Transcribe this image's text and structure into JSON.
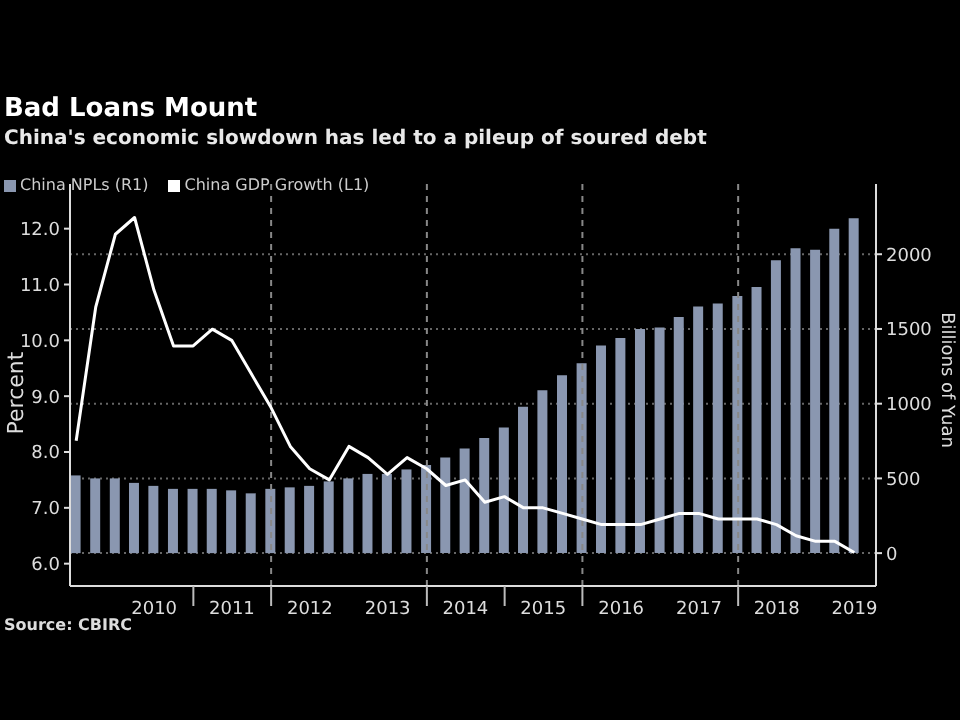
{
  "chart_data": {
    "type": "bar",
    "title": "Bad Loans Mount",
    "subtitle": "China's economic slowdown has led to a pileup of soured debt",
    "ylabel": "Percent",
    "y2label": "Billions of Yuan",
    "annotations": [
      "Source: CBIRC"
    ],
    "x": [
      "2009-06-30",
      "2009-09-30",
      "2009-12-31",
      "2010-03-31",
      "2010-06-30",
      "2010-09-30",
      "2010-12-31",
      "2011-03-31",
      "2011-06-30",
      "2011-09-30",
      "2011-12-31",
      "2012-03-31",
      "2012-06-30",
      "2012-09-30",
      "2012-12-31",
      "2013-03-31",
      "2013-06-30",
      "2013-09-30",
      "2013-12-31",
      "2014-03-31",
      "2014-06-30",
      "2014-09-30",
      "2014-12-31",
      "2015-03-31",
      "2015-06-30",
      "2015-09-30",
      "2015-12-31",
      "2016-03-31",
      "2016-06-30",
      "2016-09-30",
      "2016-12-31",
      "2017-03-31",
      "2017-06-30",
      "2017-09-30",
      "2017-12-31",
      "2018-03-31",
      "2018-06-30",
      "2018-09-30",
      "2018-12-31",
      "2019-03-31",
      "2019-06-30"
    ],
    "series": [
      {
        "name": "China NPLs (R1)",
        "axis": "y2",
        "color": "#8a97b0",
        "values": [
          520,
          500,
          500,
          470,
          450,
          430,
          430,
          430,
          420,
          400,
          430,
          440,
          450,
          480,
          500,
          530,
          530,
          560,
          590,
          640,
          700,
          770,
          840,
          980,
          1090,
          1190,
          1270,
          1390,
          1440,
          1500,
          1510,
          1580,
          1650,
          1670,
          1720,
          1780,
          1960,
          2040,
          2030,
          2170,
          2240
        ]
      },
      {
        "name": "China GDP Growth (L1)",
        "type": "line",
        "color": "#ffffff",
        "values": [
          8.2,
          10.6,
          11.9,
          12.2,
          10.9,
          9.9,
          9.9,
          10.2,
          10.0,
          9.4,
          8.8,
          8.1,
          7.7,
          7.5,
          8.1,
          7.9,
          7.6,
          7.9,
          7.7,
          7.4,
          7.5,
          7.1,
          7.2,
          7.0,
          7.0,
          6.9,
          6.8,
          6.7,
          6.7,
          6.7,
          6.8,
          6.9,
          6.9,
          6.8,
          6.8,
          6.8,
          6.7,
          6.5,
          6.4,
          6.4,
          6.2
        ]
      }
    ],
    "xlim": [
      "2009-06-01",
      "2019-10-10"
    ],
    "xticks": [
      {
        "value": "2010-07-01",
        "label": "2010"
      },
      {
        "value": "2011-01-01",
        "label": null
      },
      {
        "value": "2011-07-01",
        "label": "2011"
      },
      {
        "value": "2012-01-01",
        "label": null
      },
      {
        "value": "2012-07-01",
        "label": "2012"
      },
      {
        "value": "2013-07-01",
        "label": "2013"
      },
      {
        "value": "2014-01-01",
        "label": null
      },
      {
        "value": "2014-07-01",
        "label": "2014"
      },
      {
        "value": "2015-01-01",
        "label": null
      },
      {
        "value": "2015-07-01",
        "label": "2015"
      },
      {
        "value": "2016-01-01",
        "label": null
      },
      {
        "value": "2016-07-01",
        "label": "2016"
      },
      {
        "value": "2017-07-01",
        "label": "2017"
      },
      {
        "value": "2018-01-01",
        "label": null
      },
      {
        "value": "2018-07-01",
        "label": "2018"
      },
      {
        "value": "2019-07-01",
        "label": "2019"
      }
    ],
    "ylim": [
      5.6,
      12.8
    ],
    "yticks": [
      {
        "value": 6,
        "label": "6.0"
      },
      {
        "value": 7,
        "label": "7.0"
      },
      {
        "value": 8,
        "label": "8.0"
      },
      {
        "value": 9,
        "label": "9.0"
      },
      {
        "value": 10,
        "label": "10.0"
      },
      {
        "value": 11,
        "label": "11.0"
      },
      {
        "value": 12,
        "label": "12.0"
      }
    ],
    "y2lim": [
      -220,
      2470
    ],
    "y2ticks": [
      0,
      500,
      1000,
      1500,
      2000
    ],
    "ref_lines": [
      {
        "axis": "x",
        "value": "2012-01-01",
        "color": "#888888",
        "line_style": "dashed"
      },
      {
        "axis": "x",
        "value": "2014-01-01",
        "color": "#888888",
        "line_style": "dashed"
      },
      {
        "axis": "x",
        "value": "2016-01-01",
        "color": "#888888",
        "line_style": "dashed"
      },
      {
        "axis": "x",
        "value": "2018-01-01",
        "color": "#888888",
        "line_style": "dashed"
      }
    ],
    "grid": "y",
    "legend": "top left"
  }
}
